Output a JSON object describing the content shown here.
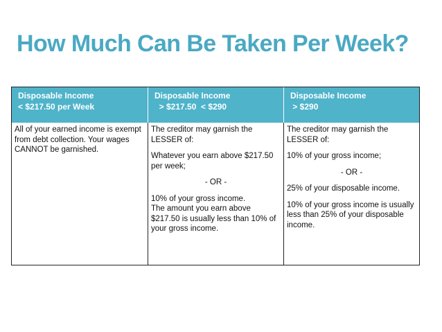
{
  "title": "How Much Can Be Taken Per Week?",
  "columns": [
    {
      "header": [
        "Disposable Income",
        "< $217.50 per Week"
      ],
      "body": {
        "p1": "All of your earned income is exempt from debt collection.  Your wages CANNOT be garnished."
      }
    },
    {
      "header": [
        "Disposable Income",
        "  > $217.50  < $290"
      ],
      "body": {
        "p1": "The creditor may garnish the LESSER of:",
        "p2": "Whatever you earn above $217.50 per week;",
        "or": "- OR -",
        "p3": "10% of your gross income.",
        "p4": "The amount you earn above $217.50 is usually less than 10% of your gross income."
      }
    },
    {
      "header": [
        "Disposable Income",
        " > $290"
      ],
      "body": {
        "p1": "The creditor may garnish the LESSER of:",
        "p2": "10% of your gross income;",
        "or": "- OR -",
        "p3": "25% of your disposable income.",
        "p4": "10% of your gross income is usually less than 25% of your disposable income."
      }
    }
  ],
  "colors": {
    "title": "#4aa9c3",
    "header_bg": "#4fb3ca",
    "header_text": "#ffffff",
    "body_text": "#111111",
    "border": "#222222"
  }
}
